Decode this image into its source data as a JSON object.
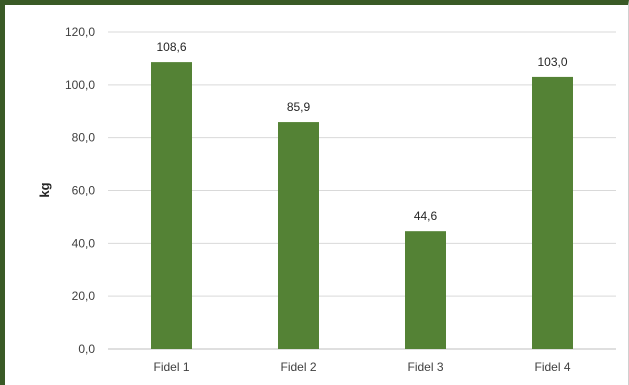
{
  "chart_data": {
    "type": "bar",
    "categories": [
      "Fidel 1",
      "Fidel 2",
      "Fidel 3",
      "Fidel 4"
    ],
    "values": [
      108.6,
      85.9,
      44.6,
      103.0
    ],
    "data_labels": [
      "108,6",
      "85,9",
      "44,6",
      "103,0"
    ],
    "y_ticks": [
      0,
      20,
      40,
      60,
      80,
      100,
      120
    ],
    "y_tick_labels": [
      "0,0",
      "20,0",
      "40,0",
      "60,0",
      "80,0",
      "100,0",
      "120,0"
    ],
    "title": "",
    "xlabel": "",
    "ylabel": "kg",
    "ylim": [
      0,
      120
    ],
    "grid": true,
    "legend": "none",
    "colors": {
      "bar": "#548235",
      "frame": "#3a5a26",
      "grid": "#d9d9d9",
      "baseline": "#bfbfbf"
    }
  }
}
